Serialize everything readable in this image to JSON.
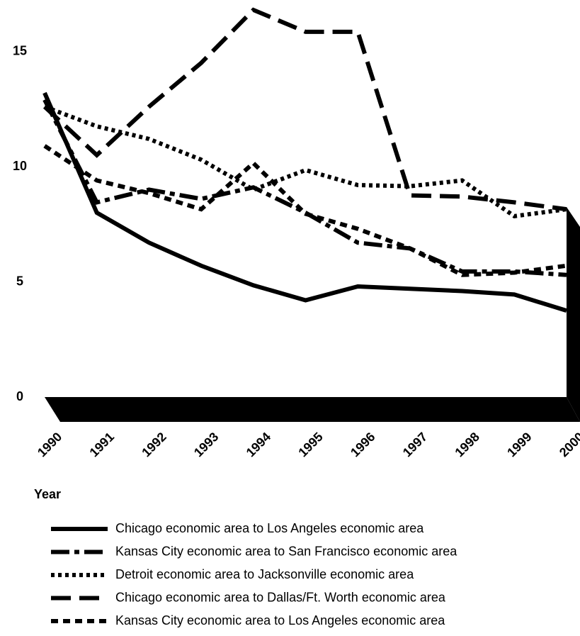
{
  "chart_data": {
    "type": "line",
    "x_label": "Year",
    "categories": [
      "1990",
      "1991",
      "1992",
      "1993",
      "1994",
      "1995",
      "1996",
      "1997",
      "1998",
      "1999",
      "2000"
    ],
    "ylim": [
      0,
      17.2
    ],
    "yticks": [
      0,
      5,
      10,
      15
    ],
    "series": [
      {
        "name": "Chicago economic area to Los Angeles economic area",
        "color": "#000000",
        "dash": "solid",
        "values": [
          13.2,
          8.0,
          6.7,
          5.7,
          4.85,
          4.2,
          4.8,
          4.7,
          4.6,
          4.45,
          3.75
        ]
      },
      {
        "name": "Kansas City economic area to San Francisco economic area",
        "color": "#000000",
        "dash": "dash-dot",
        "values": [
          12.9,
          8.45,
          9.0,
          8.6,
          9.1,
          8.0,
          6.7,
          6.45,
          5.45,
          5.45,
          5.3
        ]
      },
      {
        "name": "Detroit economic area to Jacksonville economic area",
        "color": "#000000",
        "dash": "dotted",
        "values": [
          12.6,
          11.75,
          11.2,
          10.3,
          9.0,
          9.85,
          9.2,
          9.15,
          9.4,
          7.85,
          8.15
        ]
      },
      {
        "name": "Chicago economic area to Dallas/Ft. Worth economic area",
        "color": "#000000",
        "dash": "long-dash",
        "values": [
          12.6,
          10.5,
          12.6,
          14.5,
          16.8,
          15.85,
          15.85,
          8.75,
          8.7,
          8.45,
          8.15
        ]
      },
      {
        "name": "Kansas City economic area to Los Angeles economic area",
        "color": "#000000",
        "dash": "short-dash",
        "values": [
          10.9,
          9.4,
          8.85,
          8.15,
          10.15,
          7.95,
          7.3,
          6.45,
          5.3,
          5.4,
          5.7
        ]
      }
    ]
  }
}
